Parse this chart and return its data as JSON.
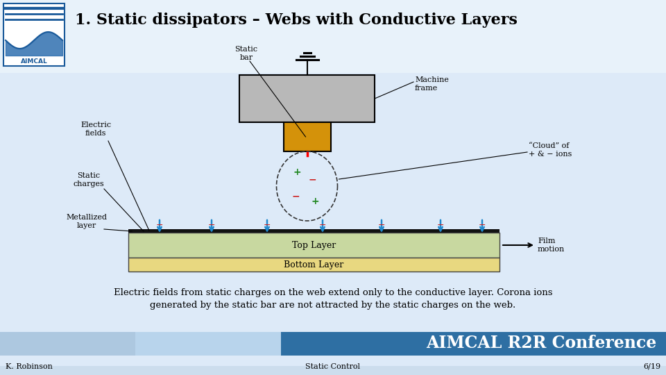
{
  "title": "1. Static dissipators – Webs with Conductive Layers",
  "title_fontsize": 16,
  "bg_color": "#ccdded",
  "footer_left": "K. Robinson",
  "footer_center": "Static Control",
  "footer_right": "6/19",
  "footer_bar_colors": [
    "#adc8e0",
    "#b8d4ec",
    "#2e6fa3"
  ],
  "body_text": "Electric fields from static charges on the web extend only to the conductive layer. Corona ions\ngenerated by the static bar are not attracted by the static charges on the web.",
  "aimcal_text": "AIMCAL R2R Conference",
  "label_electric_fields": "Electric\nfields",
  "label_static_charges": "Static\ncharges",
  "label_metallized": "Metallized\nlayer",
  "label_static_bar": "Static\nbar",
  "label_machine_frame": "Machine\nframe",
  "label_cloud": "“Cloud” of\n+ & − ions",
  "label_top_layer": "Top Layer",
  "label_bottom_layer": "Bottom Layer",
  "label_film_motion": "Film\nmotion",
  "top_layer_color": "#c8d8a0",
  "bottom_layer_color": "#e8d880",
  "machine_frame_color": "#b8b8b8",
  "static_bar_color": "#d4920a"
}
